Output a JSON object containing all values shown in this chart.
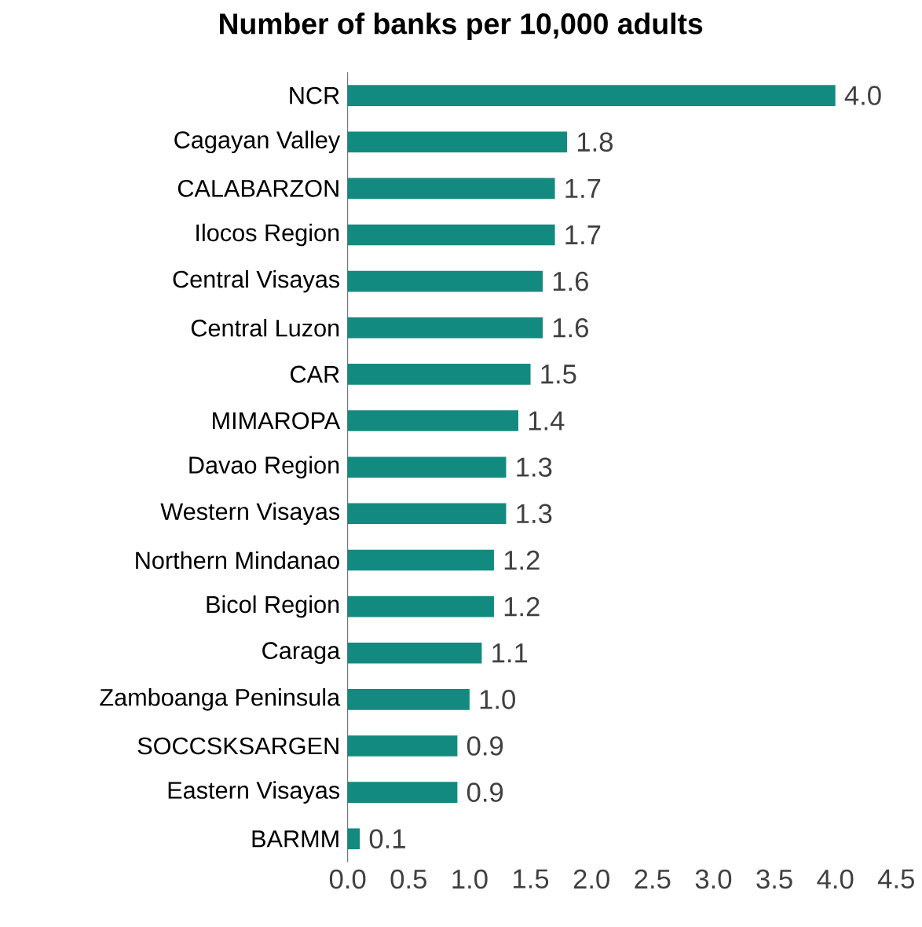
{
  "chart_data": {
    "type": "bar",
    "orientation": "horizontal",
    "title": "Number of banks per 10,000 adults",
    "categories": [
      "NCR",
      "Cagayan Valley",
      "CALABARZON",
      "Ilocos Region",
      "Central Visayas",
      "Central Luzon",
      "CAR",
      "MIMAROPA",
      "Davao Region",
      "Western Visayas",
      "Northern Mindanao",
      "Bicol Region",
      "Caraga",
      "Zamboanga Peninsula",
      "SOCCSKSARGEN",
      "Eastern Visayas",
      "BARMM"
    ],
    "values": [
      4.0,
      1.8,
      1.7,
      1.7,
      1.6,
      1.6,
      1.5,
      1.4,
      1.3,
      1.3,
      1.2,
      1.2,
      1.1,
      1.0,
      0.9,
      0.9,
      0.1
    ],
    "value_labels": [
      "4.0",
      "1.8",
      "1.7",
      "1.7",
      "1.6",
      "1.6",
      "1.5",
      "1.4",
      "1.3",
      "1.3",
      "1.2",
      "1.2",
      "1.1",
      "1.0",
      "0.9",
      "0.9",
      "0.1"
    ],
    "color": "#138a80",
    "xlim": [
      0,
      4.5
    ],
    "xticks": [
      {
        "value": 0,
        "label": "0.0"
      },
      {
        "value": 0.5,
        "label": "0.5"
      },
      {
        "value": 1,
        "label": "1.0"
      },
      {
        "value": 1.5,
        "label": "1.5"
      },
      {
        "value": 2,
        "label": "2.0"
      },
      {
        "value": 2.5,
        "label": "2.5"
      },
      {
        "value": 3,
        "label": "3.0"
      },
      {
        "value": 3.5,
        "label": "3.5"
      },
      {
        "value": 4,
        "label": "4.0"
      },
      {
        "value": 4.5,
        "label": "4.5"
      }
    ],
    "grid": false
  }
}
